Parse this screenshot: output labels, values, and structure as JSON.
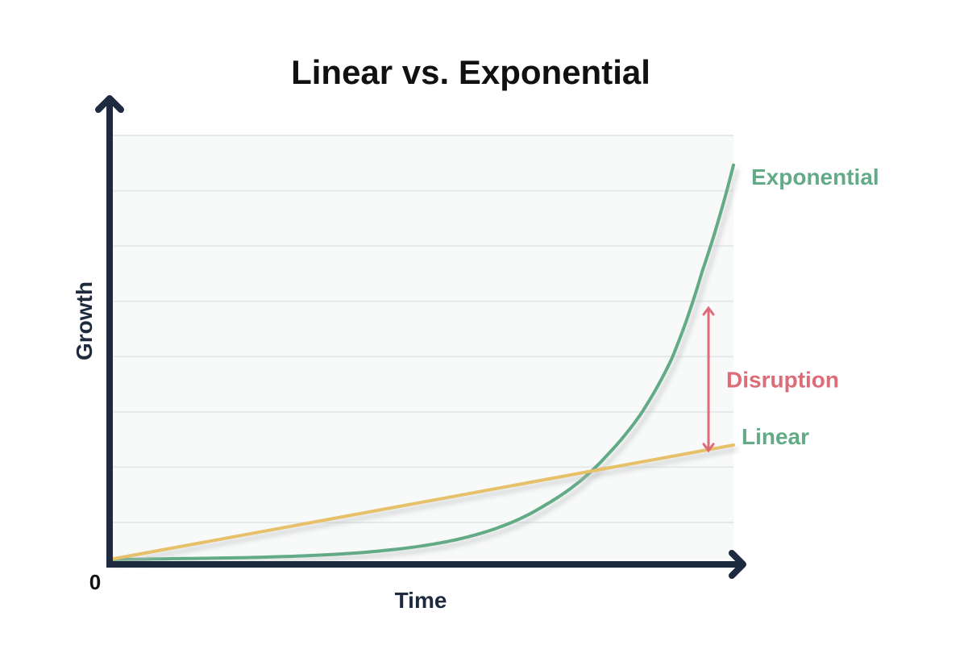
{
  "chart_data": {
    "type": "line",
    "title": "Linear vs. Exponential",
    "xlabel": "Time",
    "ylabel": "Growth",
    "origin_label": "0",
    "xlim": [
      0,
      1
    ],
    "ylim": [
      0,
      1
    ],
    "grid": true,
    "legend": "none",
    "series": [
      {
        "name": "Exponential",
        "color": "#62ab86",
        "x": [
          0,
          0.1,
          0.2,
          0.3,
          0.4,
          0.5,
          0.55,
          0.6,
          0.65,
          0.7,
          0.75,
          0.8,
          0.85,
          0.9,
          0.95,
          1.0
        ],
        "y": [
          0.0,
          0.002,
          0.004,
          0.008,
          0.016,
          0.032,
          0.045,
          0.064,
          0.091,
          0.13,
          0.18,
          0.25,
          0.34,
          0.47,
          0.68,
          0.93
        ]
      },
      {
        "name": "Linear",
        "color": "#e7c06a",
        "x": [
          0,
          1
        ],
        "y": [
          0.0,
          0.27
        ]
      }
    ],
    "annotations": [
      {
        "text": "Disruption",
        "color": "#dd6b78",
        "x": 0.96,
        "y_from": 0.595,
        "y_to": 0.255
      }
    ]
  }
}
